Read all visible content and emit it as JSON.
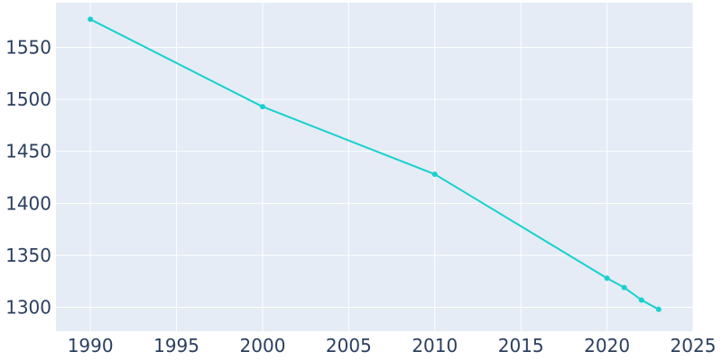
{
  "chart_data": {
    "type": "line",
    "title": "",
    "xlabel": "",
    "ylabel": "",
    "grid": true,
    "xlim": [
      1988,
      2025
    ],
    "ylim": [
      1277,
      1593
    ],
    "x_ticks": [
      1990,
      1995,
      2000,
      2005,
      2010,
      2015,
      2020,
      2025
    ],
    "y_ticks": [
      1300,
      1350,
      1400,
      1450,
      1500,
      1550
    ],
    "series": [
      {
        "x": [
          1990,
          2000,
          2010,
          2020,
          2021,
          2022,
          2023
        ],
        "y": [
          1577,
          1493,
          1428,
          1328,
          1319,
          1307,
          1298
        ],
        "color": "#17d1cf"
      }
    ],
    "colors": {
      "plot_background": "#e5ecf6",
      "grid": "#ffffff",
      "tick_text": "#2a3f5f"
    }
  }
}
